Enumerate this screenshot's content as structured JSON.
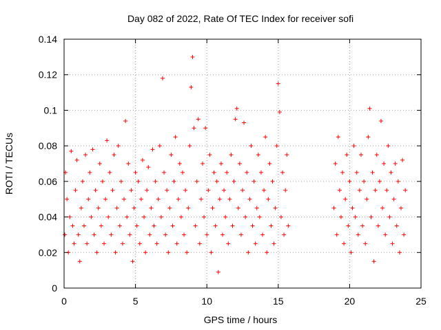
{
  "chart_data": {
    "type": "scatter",
    "title": "Day 082 of 2022, Rate Of TEC Index for receiver sofi",
    "xlabel": "GPS time / hours",
    "ylabel": "ROTI / TECUs",
    "xlim": [
      0,
      25
    ],
    "ylim": [
      0,
      0.14
    ],
    "x_ticks": [
      0,
      5,
      10,
      15,
      20,
      25
    ],
    "x_tick_labels": [
      "0",
      "5",
      "10",
      "15",
      "20",
      "25"
    ],
    "y_ticks": [
      0,
      0.02,
      0.04,
      0.06,
      0.08,
      0.1,
      0.12,
      0.14
    ],
    "y_tick_labels": [
      "0",
      "0.02",
      "0.04",
      "0.06",
      "0.08",
      "0.1",
      "0.12",
      "0.14"
    ],
    "grid": true,
    "marker": "plus",
    "marker_color": "#ff0000",
    "data_gaps_hours": [
      [
        15.8,
        18.8
      ]
    ],
    "series": [
      {
        "points": [
          [
            0.05,
            0.03
          ],
          [
            0.1,
            0.065
          ],
          [
            0.2,
            0.05
          ],
          [
            0.3,
            0.02
          ],
          [
            0.4,
            0.04
          ],
          [
            0.5,
            0.077
          ],
          [
            0.6,
            0.035
          ],
          [
            0.7,
            0.025
          ],
          [
            0.8,
            0.055
          ],
          [
            0.9,
            0.072
          ],
          [
            1.0,
            0.03
          ],
          [
            1.1,
            0.015
          ],
          [
            1.2,
            0.045
          ],
          [
            1.3,
            0.06
          ],
          [
            1.4,
            0.035
          ],
          [
            1.5,
            0.075
          ],
          [
            1.6,
            0.025
          ],
          [
            1.7,
            0.05
          ],
          [
            1.8,
            0.065
          ],
          [
            1.9,
            0.04
          ],
          [
            2.0,
            0.078
          ],
          [
            2.1,
            0.03
          ],
          [
            2.2,
            0.055
          ],
          [
            2.3,
            0.02
          ],
          [
            2.4,
            0.045
          ],
          [
            2.5,
            0.07
          ],
          [
            2.6,
            0.035
          ],
          [
            2.7,
            0.06
          ],
          [
            2.8,
            0.025
          ],
          [
            2.9,
            0.05
          ],
          [
            3.0,
            0.083
          ],
          [
            3.1,
            0.04
          ],
          [
            3.2,
            0.065
          ],
          [
            3.3,
            0.03
          ],
          [
            3.4,
            0.055
          ],
          [
            3.5,
            0.075
          ],
          [
            3.6,
            0.02
          ],
          [
            3.7,
            0.045
          ],
          [
            3.8,
            0.08
          ],
          [
            3.9,
            0.035
          ],
          [
            4.0,
            0.06
          ],
          [
            4.1,
            0.025
          ],
          [
            4.2,
            0.05
          ],
          [
            4.3,
            0.094
          ],
          [
            4.4,
            0.04
          ],
          [
            4.5,
            0.07
          ],
          [
            4.6,
            0.03
          ],
          [
            4.7,
            0.055
          ],
          [
            4.8,
            0.015
          ],
          [
            4.9,
            0.045
          ],
          [
            5.0,
            0.065
          ],
          [
            5.1,
            0.035
          ],
          [
            5.2,
            0.06
          ],
          [
            5.3,
            0.025
          ],
          [
            5.4,
            0.05
          ],
          [
            5.5,
            0.072
          ],
          [
            5.6,
            0.04
          ],
          [
            5.7,
            0.02
          ],
          [
            5.8,
            0.055
          ],
          [
            5.9,
            0.068
          ],
          [
            6.0,
            0.03
          ],
          [
            6.1,
            0.045
          ],
          [
            6.2,
            0.078
          ],
          [
            6.3,
            0.035
          ],
          [
            6.4,
            0.06
          ],
          [
            6.5,
            0.025
          ],
          [
            6.6,
            0.05
          ],
          [
            6.7,
            0.08
          ],
          [
            6.8,
            0.04
          ],
          [
            6.9,
            0.118
          ],
          [
            7.0,
            0.065
          ],
          [
            7.1,
            0.03
          ],
          [
            7.2,
            0.055
          ],
          [
            7.3,
            0.02
          ],
          [
            7.4,
            0.045
          ],
          [
            7.5,
            0.075
          ],
          [
            7.6,
            0.035
          ],
          [
            7.7,
            0.06
          ],
          [
            7.8,
            0.085
          ],
          [
            7.9,
            0.025
          ],
          [
            8.0,
            0.05
          ],
          [
            8.1,
            0.07
          ],
          [
            8.2,
            0.04
          ],
          [
            8.3,
            0.065
          ],
          [
            8.4,
            0.03
          ],
          [
            8.5,
            0.055
          ],
          [
            8.6,
            0.02
          ],
          [
            8.7,
            0.045
          ],
          [
            8.8,
            0.08
          ],
          [
            8.9,
            0.113
          ],
          [
            9.0,
            0.13
          ],
          [
            9.1,
            0.09
          ],
          [
            9.2,
            0.035
          ],
          [
            9.3,
            0.06
          ],
          [
            9.4,
            0.095
          ],
          [
            9.5,
            0.025
          ],
          [
            9.6,
            0.05
          ],
          [
            9.7,
            0.07
          ],
          [
            9.8,
            0.04
          ],
          [
            9.9,
            0.09
          ],
          [
            10.0,
            0.03
          ],
          [
            10.1,
            0.055
          ],
          [
            10.2,
            0.075
          ],
          [
            10.3,
            0.02
          ],
          [
            10.4,
            0.045
          ],
          [
            10.5,
            0.065
          ],
          [
            10.6,
            0.035
          ],
          [
            10.7,
            0.06
          ],
          [
            10.8,
            0.009
          ],
          [
            10.9,
            0.05
          ],
          [
            11.0,
            0.07
          ],
          [
            11.1,
            0.03
          ],
          [
            11.2,
            0.055
          ],
          [
            11.3,
            0.04
          ],
          [
            11.4,
            0.065
          ],
          [
            11.5,
            0.025
          ],
          [
            11.6,
            0.05
          ],
          [
            11.7,
            0.075
          ],
          [
            11.8,
            0.035
          ],
          [
            11.9,
            0.06
          ],
          [
            12.0,
            0.095
          ],
          [
            12.1,
            0.101
          ],
          [
            12.2,
            0.045
          ],
          [
            12.3,
            0.07
          ],
          [
            12.4,
            0.03
          ],
          [
            12.5,
            0.055
          ],
          [
            12.6,
            0.093
          ],
          [
            12.7,
            0.04
          ],
          [
            12.8,
            0.065
          ],
          [
            12.9,
            0.02
          ],
          [
            13.0,
            0.05
          ],
          [
            13.1,
            0.08
          ],
          [
            13.2,
            0.035
          ],
          [
            13.3,
            0.06
          ],
          [
            13.4,
            0.025
          ],
          [
            13.5,
            0.045
          ],
          [
            13.6,
            0.075
          ],
          [
            13.7,
            0.04
          ],
          [
            13.8,
            0.065
          ],
          [
            13.9,
            0.03
          ],
          [
            14.0,
            0.055
          ],
          [
            14.1,
            0.085
          ],
          [
            14.2,
            0.02
          ],
          [
            14.3,
            0.05
          ],
          [
            14.4,
            0.07
          ],
          [
            14.5,
            0.035
          ],
          [
            14.6,
            0.06
          ],
          [
            14.7,
            0.025
          ],
          [
            14.8,
            0.045
          ],
          [
            14.9,
            0.08
          ],
          [
            15.0,
            0.115
          ],
          [
            15.1,
            0.099
          ],
          [
            15.2,
            0.04
          ],
          [
            15.3,
            0.065
          ],
          [
            15.4,
            0.03
          ],
          [
            15.5,
            0.055
          ],
          [
            15.6,
            0.075
          ],
          [
            15.7,
            0.035
          ],
          [
            18.9,
            0.045
          ],
          [
            19.0,
            0.07
          ],
          [
            19.1,
            0.03
          ],
          [
            19.2,
            0.085
          ],
          [
            19.3,
            0.055
          ],
          [
            19.4,
            0.04
          ],
          [
            19.5,
            0.065
          ],
          [
            19.6,
            0.025
          ],
          [
            19.7,
            0.05
          ],
          [
            19.8,
            0.075
          ],
          [
            19.9,
            0.035
          ],
          [
            20.0,
            0.06
          ],
          [
            20.1,
            0.02
          ],
          [
            20.2,
            0.045
          ],
          [
            20.3,
            0.08
          ],
          [
            20.4,
            0.04
          ],
          [
            20.5,
            0.065
          ],
          [
            20.6,
            0.03
          ],
          [
            20.7,
            0.055
          ],
          [
            20.8,
            0.075
          ],
          [
            20.9,
            0.035
          ],
          [
            21.0,
            0.06
          ],
          [
            21.1,
            0.025
          ],
          [
            21.2,
            0.05
          ],
          [
            21.3,
            0.085
          ],
          [
            21.4,
            0.101
          ],
          [
            21.5,
            0.04
          ],
          [
            21.6,
            0.065
          ],
          [
            21.7,
            0.015
          ],
          [
            21.8,
            0.055
          ],
          [
            21.9,
            0.075
          ],
          [
            22.0,
            0.035
          ],
          [
            22.1,
            0.06
          ],
          [
            22.2,
            0.094
          ],
          [
            22.3,
            0.045
          ],
          [
            22.4,
            0.07
          ],
          [
            22.5,
            0.03
          ],
          [
            22.6,
            0.055
          ],
          [
            22.7,
            0.08
          ],
          [
            22.8,
            0.04
          ],
          [
            22.9,
            0.065
          ],
          [
            23.0,
            0.025
          ],
          [
            23.1,
            0.05
          ],
          [
            23.2,
            0.07
          ],
          [
            23.3,
            0.035
          ],
          [
            23.4,
            0.06
          ],
          [
            23.5,
            0.02
          ],
          [
            23.6,
            0.045
          ],
          [
            23.7,
            0.072
          ],
          [
            23.8,
            0.03
          ],
          [
            23.9,
            0.055
          ]
        ]
      }
    ]
  }
}
